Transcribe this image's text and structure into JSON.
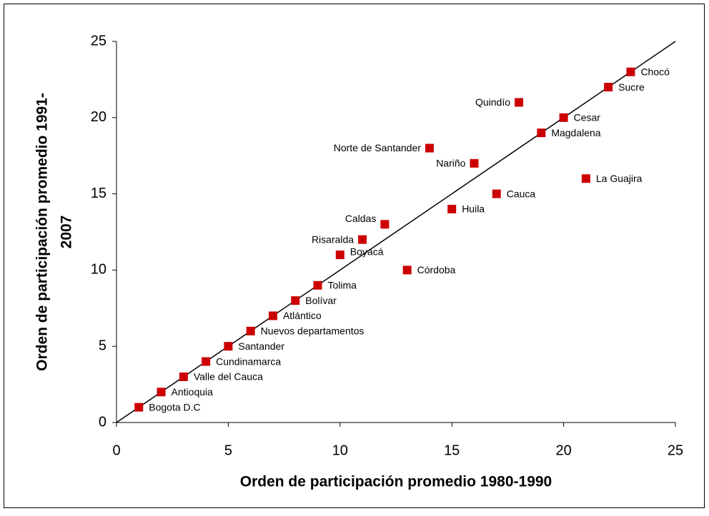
{
  "chart_data": {
    "type": "scatter",
    "xlabel": "Orden de participación promedio 1980-1990",
    "ylabel_lines": [
      "Orden de participación promedio 1991-",
      "2007"
    ],
    "x": [
      1,
      2,
      3,
      4,
      5,
      6,
      7,
      8,
      9,
      10,
      11,
      12,
      13,
      14,
      15,
      16,
      17,
      18,
      19,
      20,
      21,
      22,
      23
    ],
    "values": [
      1,
      2,
      3,
      4,
      5,
      6,
      7,
      8,
      9,
      11,
      12,
      13,
      10,
      18,
      14,
      17,
      15,
      21,
      19,
      20,
      16,
      22,
      23
    ],
    "point_labels": [
      "Bogota D.C",
      "Antioquia",
      "Valle del Cauca",
      "Cundinamarca",
      "Santander",
      "Nuevos departamentos",
      "Atlántico",
      "Bolívar",
      "Tolima",
      "Boyacá",
      "Risaralda",
      "Caldas",
      "Córdoba",
      "Norte de Santander",
      "Huila",
      "Nariño",
      "Cauca",
      "Quindío",
      "Magdalena",
      "Cesar",
      "La Guajira",
      "Sucre",
      "Chocó"
    ],
    "color": "#cc0000",
    "xlim": [
      0,
      25
    ],
    "xticks": [
      0,
      5,
      10,
      15,
      20,
      25
    ],
    "ylim": [
      0,
      25
    ],
    "yticks": [
      0,
      5,
      10,
      15,
      20,
      25
    ],
    "diagonal": true
  }
}
